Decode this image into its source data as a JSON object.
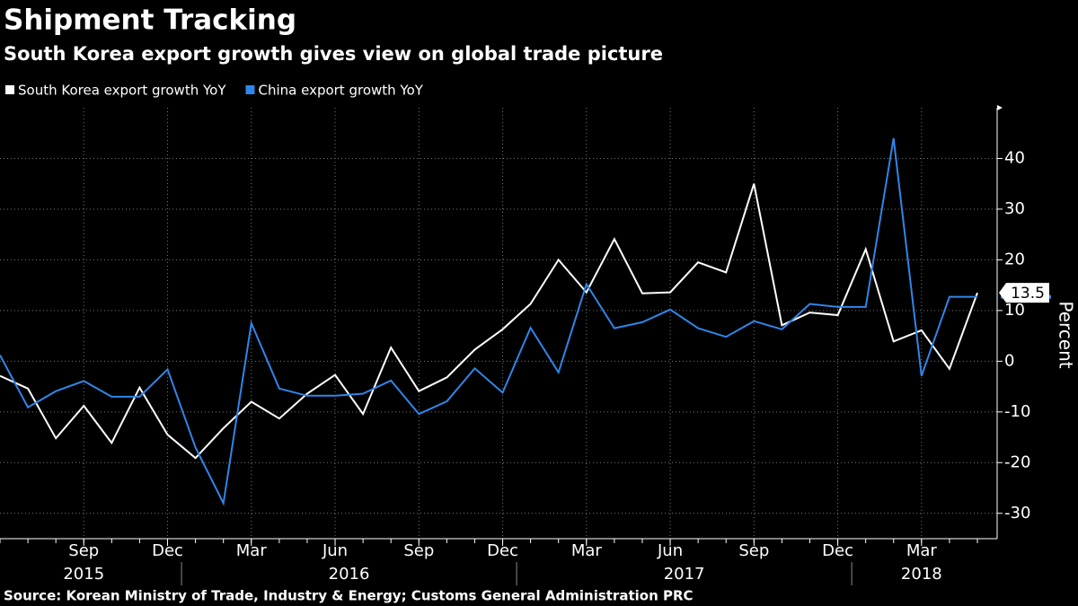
{
  "chart_data": {
    "type": "line",
    "title": "Shipment Tracking",
    "subtitle": "South Korea export growth gives view on global trade picture",
    "y_label": "Percent",
    "source": "Source: Korean Ministry of Trade, Industry & Energy; Customs General Administration PRC",
    "x": [
      "2015-06",
      "2015-07",
      "2015-08",
      "2015-09",
      "2015-10",
      "2015-11",
      "2015-12",
      "2016-01",
      "2016-02",
      "2016-03",
      "2016-04",
      "2016-05",
      "2016-06",
      "2016-07",
      "2016-08",
      "2016-09",
      "2016-10",
      "2016-11",
      "2016-12",
      "2017-01",
      "2017-02",
      "2017-03",
      "2017-04",
      "2017-05",
      "2017-06",
      "2017-07",
      "2017-08",
      "2017-09",
      "2017-10",
      "2017-11",
      "2017-12",
      "2018-01",
      "2018-02",
      "2018-03",
      "2018-04",
      "2018-05"
    ],
    "series": [
      {
        "name": "South Korea export growth YoY",
        "color": "#ffffff",
        "values": [
          -2.9,
          -5.4,
          -15.2,
          -8.8,
          -16.1,
          -5.2,
          -14.5,
          -19.1,
          -13.2,
          -8.0,
          -11.3,
          -6.4,
          -2.7,
          -10.4,
          2.7,
          -5.9,
          -3.2,
          2.3,
          6.3,
          11.3,
          20.0,
          13.6,
          24.1,
          13.4,
          13.6,
          19.5,
          17.5,
          35.0,
          7.1,
          9.6,
          9.1,
          22.1,
          3.9,
          6.1,
          -1.5,
          13.5
        ]
      },
      {
        "name": "China export growth YoY",
        "color": "#2f86e8",
        "values": [
          1.2,
          -9.1,
          -5.9,
          -3.9,
          -7.0,
          -7.0,
          -1.6,
          -17.0,
          -28.0,
          7.5,
          -5.4,
          -6.8,
          -6.8,
          -6.4,
          -3.8,
          -10.4,
          -7.9,
          -1.4,
          -6.2,
          6.6,
          -2.2,
          15.2,
          6.5,
          7.7,
          10.2,
          6.5,
          4.8,
          7.9,
          6.3,
          11.3,
          10.7,
          10.7,
          44.0,
          -2.9,
          12.7,
          12.7
        ]
      }
    ],
    "xticks": [
      {
        "value": "2015-09",
        "label": "Sep"
      },
      {
        "value": "2015-12",
        "label": "Dec"
      },
      {
        "value": "2016-03",
        "label": "Mar"
      },
      {
        "value": "2016-06",
        "label": "Jun"
      },
      {
        "value": "2016-09",
        "label": "Sep"
      },
      {
        "value": "2016-12",
        "label": "Dec"
      },
      {
        "value": "2017-03",
        "label": "Mar"
      },
      {
        "value": "2017-06",
        "label": "Jun"
      },
      {
        "value": "2017-09",
        "label": "Sep"
      },
      {
        "value": "2017-12",
        "label": "Dec"
      },
      {
        "value": "2018-03",
        "label": "Mar"
      }
    ],
    "year_labels": [
      "2015",
      "2016",
      "2017",
      "2018"
    ],
    "ylim": [
      -35,
      50
    ],
    "yticks": [
      -30,
      -20,
      -10,
      0,
      10,
      20,
      30,
      40
    ],
    "grid": true,
    "legend": "top-left"
  }
}
